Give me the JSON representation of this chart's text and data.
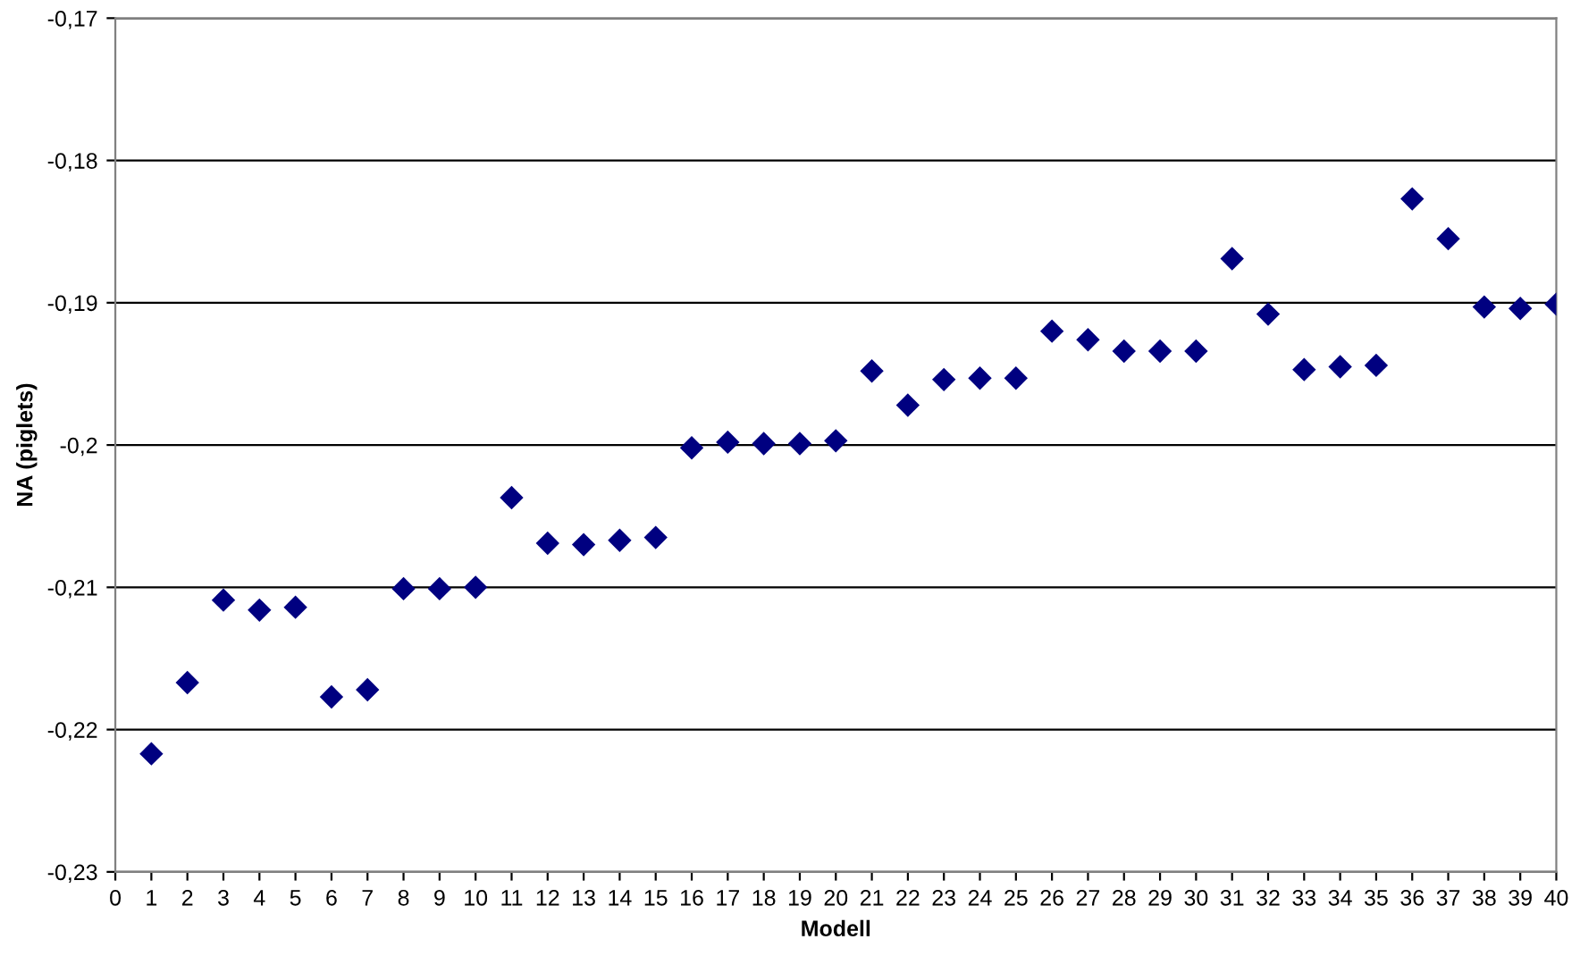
{
  "chart_data": {
    "type": "scatter",
    "xlabel": "Modell",
    "ylabel": "NA (piglets)",
    "x": [
      1,
      2,
      3,
      4,
      5,
      6,
      7,
      8,
      9,
      10,
      11,
      12,
      13,
      14,
      15,
      16,
      17,
      18,
      19,
      20,
      21,
      22,
      23,
      24,
      25,
      26,
      27,
      28,
      29,
      30,
      31,
      32,
      33,
      34,
      35,
      36,
      37,
      38,
      39,
      40
    ],
    "series": [
      {
        "color": "#000080",
        "values": [
          -0.2217,
          -0.2167,
          -0.2109,
          -0.2116,
          -0.2114,
          -0.2177,
          -0.2172,
          -0.2101,
          -0.2101,
          -0.21,
          -0.2037,
          -0.2069,
          -0.207,
          -0.2067,
          -0.2065,
          -0.2002,
          -0.1998,
          -0.1999,
          -0.1999,
          -0.1997,
          -0.1948,
          -0.1972,
          -0.1954,
          -0.1953,
          -0.1953,
          -0.192,
          -0.1926,
          -0.1934,
          -0.1934,
          -0.1934,
          -0.1869,
          -0.1908,
          -0.1947,
          -0.1945,
          -0.1944,
          -0.1827,
          -0.1855,
          -0.1903,
          -0.1904,
          -0.1901
        ]
      }
    ],
    "xlim": [
      0,
      40
    ],
    "xticks": [
      0,
      1,
      2,
      3,
      4,
      5,
      6,
      7,
      8,
      9,
      10,
      11,
      12,
      13,
      14,
      15,
      16,
      17,
      18,
      19,
      20,
      21,
      22,
      23,
      24,
      25,
      26,
      27,
      28,
      29,
      30,
      31,
      32,
      33,
      34,
      35,
      36,
      37,
      38,
      39,
      40
    ],
    "ylim": [
      -0.23,
      -0.17
    ],
    "yticks": [
      {
        "value": -0.23,
        "label": "-0,23"
      },
      {
        "value": -0.22,
        "label": "-0,22"
      },
      {
        "value": -0.21,
        "label": "-0,21"
      },
      {
        "value": -0.2,
        "label": "-0,2"
      },
      {
        "value": -0.19,
        "label": "-0,19"
      },
      {
        "value": -0.18,
        "label": "-0,18"
      },
      {
        "value": -0.17,
        "label": "-0,17"
      }
    ],
    "grid": "y",
    "marker": "diamond"
  }
}
